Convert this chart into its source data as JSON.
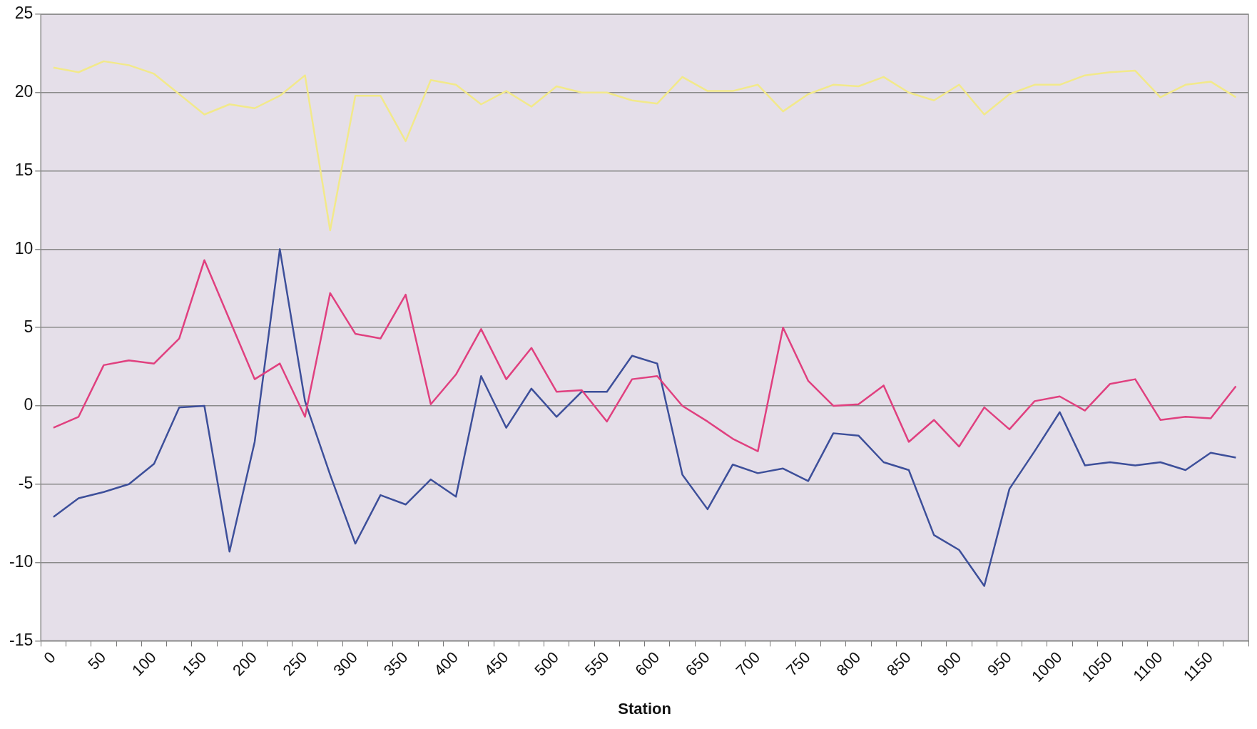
{
  "chart_data": {
    "type": "line",
    "xlabel": "Station",
    "categories": [
      "0",
      null,
      "50",
      null,
      "100",
      null,
      "150",
      null,
      "200",
      null,
      "250",
      null,
      "300",
      null,
      "350",
      null,
      "400",
      null,
      "450",
      null,
      "500",
      null,
      "550",
      null,
      "600",
      null,
      "650",
      null,
      "700",
      null,
      "750",
      null,
      "800",
      null,
      "850",
      null,
      "900",
      null,
      "950",
      null,
      "1000",
      null,
      "1050",
      null,
      "1100",
      null,
      "1150",
      null
    ],
    "series": [
      {
        "color": "#f2e98a",
        "values": [
          21.6,
          21.3,
          22.0,
          21.75,
          21.2,
          19.9,
          18.6,
          19.25,
          19.0,
          19.8,
          21.1,
          11.2,
          19.8,
          19.8,
          16.9,
          20.8,
          20.5,
          19.25,
          20.1,
          19.1,
          20.4,
          20.0,
          20.0,
          19.5,
          19.3,
          21.0,
          20.1,
          20.1,
          20.5,
          18.8,
          19.9,
          20.5,
          20.4,
          21.0,
          20.0,
          19.5,
          20.5,
          18.6,
          19.9,
          20.5,
          20.5,
          21.1,
          21.3,
          21.4,
          19.7,
          20.5,
          20.7,
          19.7
        ]
      },
      {
        "color": "#e0407f",
        "values": [
          -1.4,
          -0.7,
          2.6,
          2.9,
          2.7,
          4.3,
          9.3,
          5.5,
          1.7,
          2.7,
          -0.7,
          7.2,
          4.6,
          4.3,
          7.1,
          0.1,
          2.0,
          4.9,
          1.7,
          3.7,
          0.9,
          1.0,
          -1.0,
          1.7,
          1.9,
          0.0,
          -1.0,
          -2.1,
          -2.9,
          5.0,
          1.6,
          0.0,
          0.1,
          1.3,
          -2.3,
          -0.9,
          -2.6,
          -0.1,
          -1.5,
          0.3,
          0.6,
          -0.3,
          1.4,
          1.7,
          -0.9,
          -0.7,
          -0.8,
          1.25
        ]
      },
      {
        "color": "#3d4f9a",
        "values": [
          -7.1,
          -5.9,
          -5.5,
          -5.0,
          -3.7,
          -0.1,
          0.0,
          -9.3,
          -2.3,
          10.0,
          0.3,
          -4.4,
          -8.8,
          -5.7,
          -6.3,
          -4.7,
          -5.8,
          1.9,
          -1.4,
          1.1,
          -0.7,
          0.9,
          0.9,
          3.2,
          2.7,
          -4.4,
          -6.6,
          -3.75,
          -4.3,
          -4.0,
          -4.8,
          -1.75,
          -1.9,
          -3.6,
          -4.1,
          -8.25,
          -9.2,
          -11.5,
          -5.3,
          -2.9,
          -0.4,
          -3.8,
          -3.6,
          -3.8,
          -3.6,
          -4.1,
          -3.0,
          -3.3
        ]
      }
    ],
    "ylim": [
      -15,
      25
    ],
    "yticks": [
      -15,
      -10,
      -5,
      0,
      5,
      10,
      15,
      20,
      25
    ],
    "grid": "y",
    "legend": false,
    "marker": "none",
    "line_style": "solid"
  }
}
